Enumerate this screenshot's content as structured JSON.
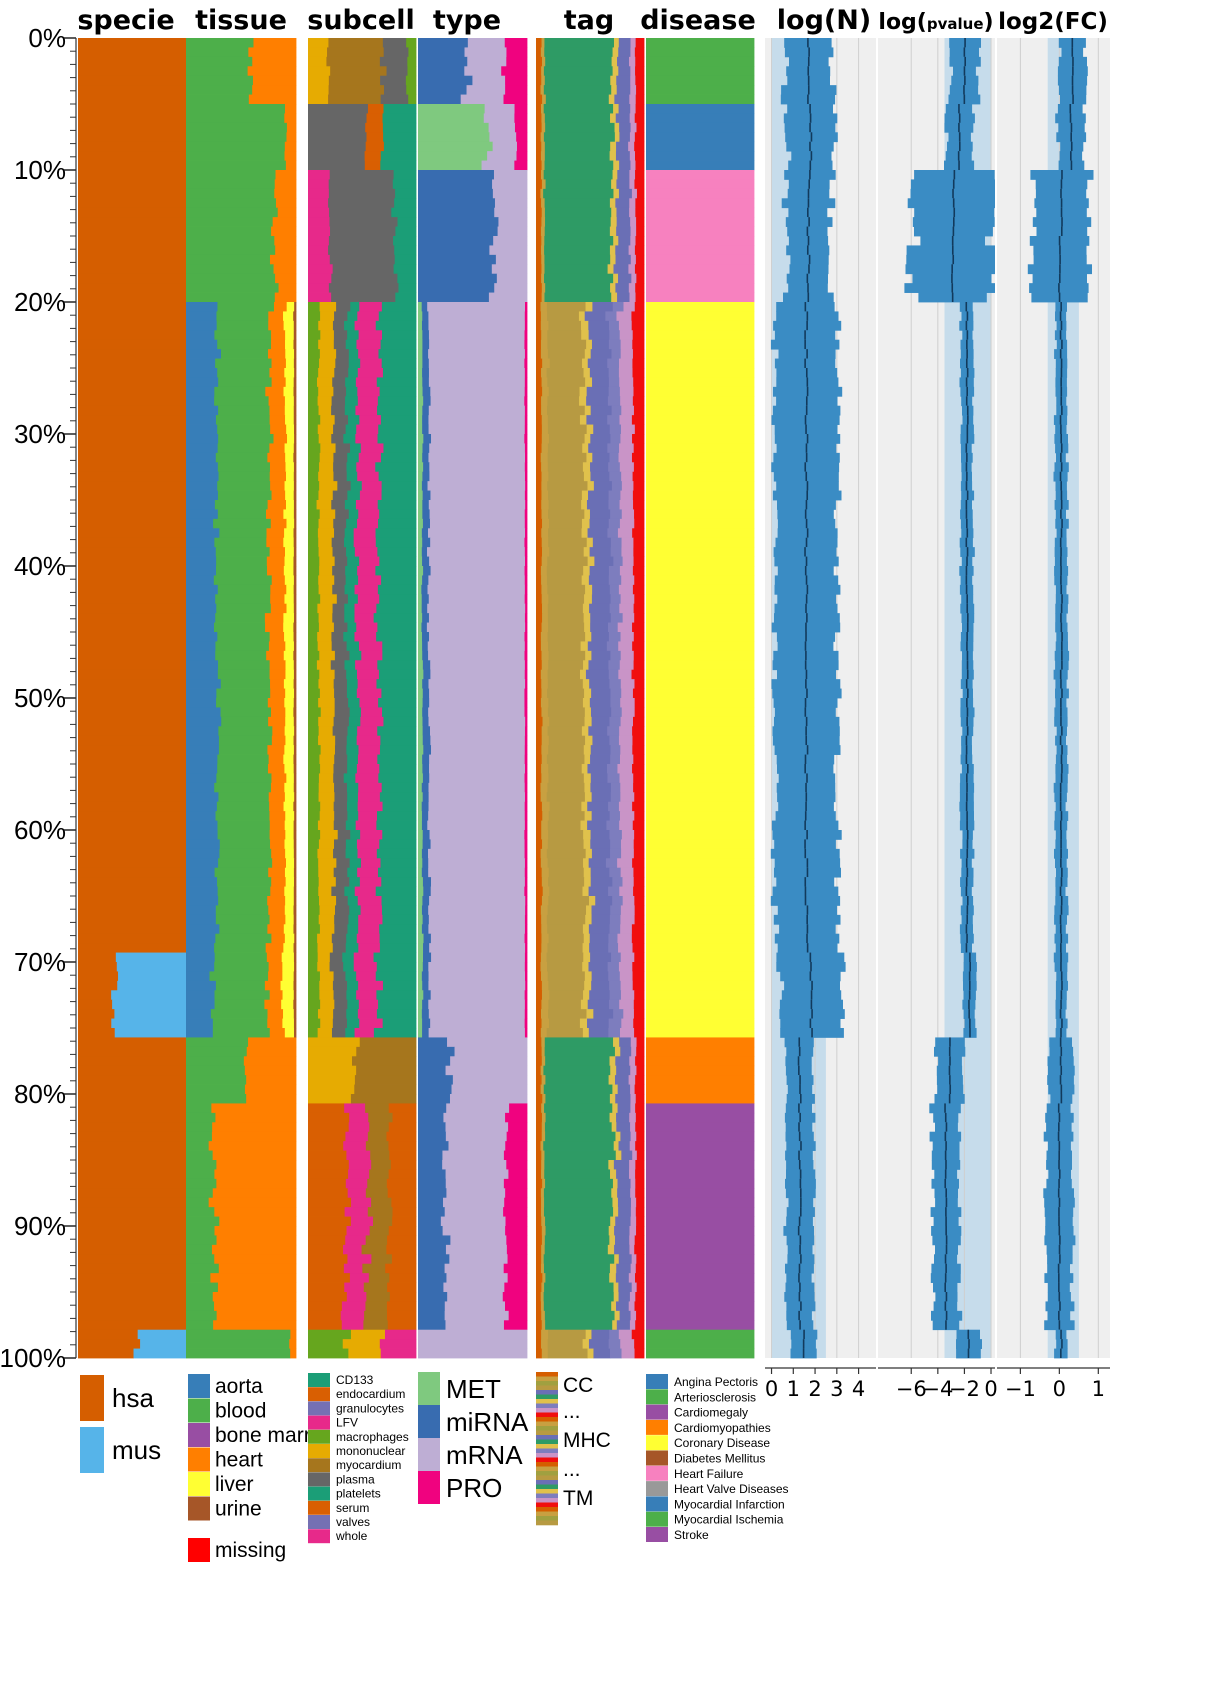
{
  "chart_data": {
    "type": "stacked-bar-panels",
    "y_axis": {
      "tick_labels": [
        "0%",
        "10%",
        "20%",
        "30%",
        "40%",
        "50%",
        "60%",
        "70%",
        "80%",
        "90%",
        "100%"
      ]
    },
    "categorical_panels": [
      {
        "title": "specie",
        "legend": [
          {
            "label": "hsa",
            "color": "#D55E00"
          },
          {
            "label": "mus",
            "color": "#56B4E9"
          }
        ]
      },
      {
        "title": "tissue",
        "legend": [
          {
            "label": "aorta",
            "color": "#377EB8"
          },
          {
            "label": "blood",
            "color": "#4DAF4A"
          },
          {
            "label": "bone marro",
            "color": "#984EA3"
          },
          {
            "label": "heart",
            "color": "#FF7F00"
          },
          {
            "label": "liver",
            "color": "#FFFF33"
          },
          {
            "label": "urine",
            "color": "#A65628"
          },
          {
            "label": "missing",
            "color": "#FF0000"
          }
        ]
      },
      {
        "title": "subcell",
        "legend": [
          {
            "label": "CD133",
            "color": "#1B9E77"
          },
          {
            "label": "endocardium",
            "color": "#D95F02"
          },
          {
            "label": "granulocytes",
            "color": "#7570B3"
          },
          {
            "label": "LFV",
            "color": "#E7298A"
          },
          {
            "label": "macrophages",
            "color": "#66A61E"
          },
          {
            "label": "mononuclear",
            "color": "#E6AB02"
          },
          {
            "label": "myocardium",
            "color": "#A6761D"
          },
          {
            "label": "plasma",
            "color": "#666666"
          },
          {
            "label": "platelets",
            "color": "#1B9E77"
          },
          {
            "label": "serum",
            "color": "#D95F02"
          },
          {
            "label": "valves",
            "color": "#7570B3"
          },
          {
            "label": "whole",
            "color": "#E7298A"
          }
        ]
      },
      {
        "title": "type",
        "legend": [
          {
            "label": "MET",
            "color": "#7FC97F"
          },
          {
            "label": "miRNA",
            "color": "#386CB0"
          },
          {
            "label": "mRNA",
            "color": "#BEAED4"
          },
          {
            "label": "PRO",
            "color": "#F0027F"
          }
        ]
      },
      {
        "title": "tag",
        "legend": [
          {
            "label": "CC",
            "color": "#D55E00"
          },
          {
            "label": "...",
            "color": ""
          },
          {
            "label": "MHC",
            "color": "#1A9850"
          },
          {
            "label": "...",
            "color": ""
          },
          {
            "label": "TM",
            "color": "#C994C7"
          }
        ]
      },
      {
        "title": "disease",
        "legend": [
          {
            "label": "Angina Pectoris",
            "color": "#377EB8"
          },
          {
            "label": "Arteriosclerosis",
            "color": "#4DAF4A"
          },
          {
            "label": "Cardiomegaly",
            "color": "#984EA3"
          },
          {
            "label": "Cardiomyopathies",
            "color": "#FF7F00"
          },
          {
            "label": "Coronary Disease",
            "color": "#FFFF33"
          },
          {
            "label": "Diabetes Mellitus",
            "color": "#A65628"
          },
          {
            "label": "Heart Failure",
            "color": "#F781BF"
          },
          {
            "label": "Heart Valve Diseases",
            "color": "#999999"
          },
          {
            "label": "Myocardial Infarction",
            "color": "#377EB8"
          },
          {
            "label": "Myocardial Ischemia",
            "color": "#4DAF4A"
          },
          {
            "label": "Stroke",
            "color": "#984EA3"
          }
        ]
      }
    ],
    "numeric_panels": [
      {
        "title": "log(N)",
        "xlim": [
          -0.3,
          4.8
        ],
        "ticks": [
          "0",
          "1",
          "2",
          "3",
          "4"
        ],
        "tick_values": [
          0,
          1,
          2,
          3,
          4
        ]
      },
      {
        "title": "log(",
        "title_sub": "pvalue",
        "title_end": ")",
        "xlim": [
          -8.5,
          0.3
        ],
        "ticks": [
          "−6",
          "−4",
          "−2",
          "0"
        ],
        "tick_values": [
          -6,
          -4,
          -2,
          0
        ]
      },
      {
        "title": "log2(FC)",
        "xlim": [
          -1.6,
          1.3
        ],
        "ticks": [
          "−1",
          "0",
          "1"
        ],
        "tick_values": [
          -1,
          0,
          1
        ]
      }
    ],
    "group_breaks_percent": [
      0,
      5,
      9.8,
      15,
      20,
      69,
      76,
      80.5,
      98,
      100
    ],
    "colors": {
      "bar": "#3A8CC4",
      "band": "#C6DCEB",
      "panel_bg": "#EFEFEF",
      "median": "#123A5C"
    }
  }
}
